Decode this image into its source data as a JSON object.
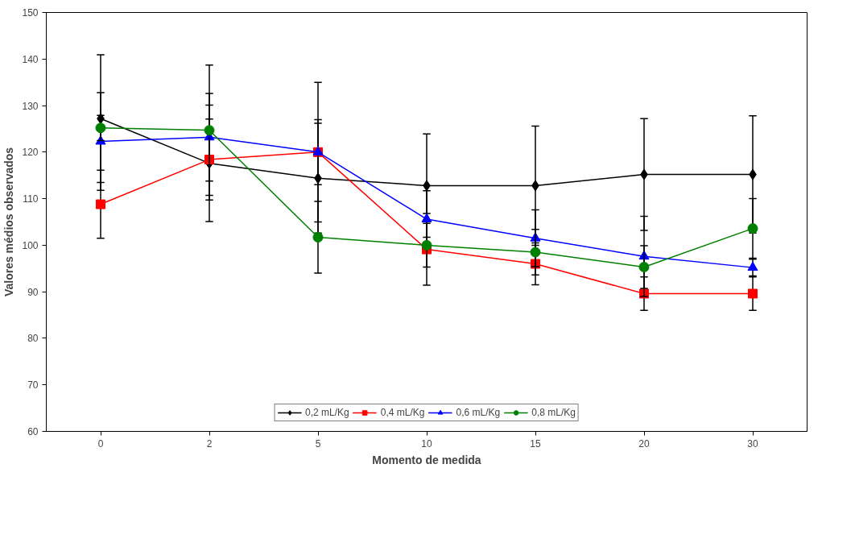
{
  "chart_data": {
    "type": "line",
    "xlabel": "Momento de medida",
    "ylabel": "Valores médios observados",
    "categories": [
      "0",
      "2",
      "5",
      "10",
      "15",
      "20",
      "30"
    ],
    "ylim": [
      60,
      150
    ],
    "yticks": [
      60,
      70,
      80,
      90,
      100,
      110,
      120,
      130,
      140,
      150
    ],
    "grid": false,
    "legend": "bottom",
    "line_style": "solid",
    "series": [
      {
        "name": "0,2 mL/Kg",
        "color": "#000000",
        "marker": "diamond",
        "values": [
          127.2,
          117.6,
          114.4,
          112.8,
          112.8,
          115.2,
          115.2
        ],
        "errors": [
          13.7,
          12.5,
          11.8,
          11.1,
          12.8,
          12.0,
          12.6
        ]
      },
      {
        "name": "0,4 mL/Kg",
        "color": "#ff0000",
        "marker": "square",
        "values": [
          108.8,
          118.4,
          120.0,
          99.1,
          96.0,
          89.6,
          89.6
        ],
        "errors": [
          7.3,
          8.7,
          15.0,
          7.7,
          4.5,
          3.6,
          3.6
        ]
      },
      {
        "name": "0,6 mL/Kg",
        "color": "#0000ff",
        "marker": "triangle",
        "values": [
          122.3,
          123.2,
          120.0,
          105.6,
          101.5,
          97.6,
          95.2
        ],
        "errors": [
          10.5,
          9.4,
          7.0,
          6.1,
          6.1,
          8.6,
          1.8
        ]
      },
      {
        "name": "0,8 mL/Kg",
        "color": "#008000",
        "marker": "circle",
        "values": [
          125.2,
          124.7,
          101.7,
          100.0,
          98.5,
          95.3,
          103.6
        ],
        "errors": [
          2.7,
          14.0,
          7.7,
          4.7,
          4.9,
          4.6,
          6.4
        ]
      }
    ]
  }
}
